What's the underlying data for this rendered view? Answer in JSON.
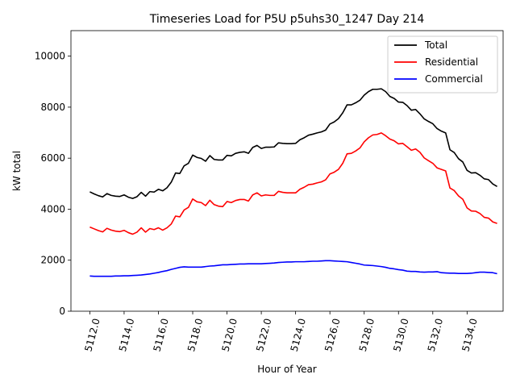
{
  "chart_data": {
    "type": "line",
    "title": "Timeseries Load for P5U p5uhs30_1247  Day 214",
    "xlabel": "Hour of Year",
    "ylabel": "kW total",
    "xlim": [
      5110.9,
      5136.1
    ],
    "ylim": [
      0,
      11000
    ],
    "xticks": [
      5112,
      5114,
      5116,
      5118,
      5120,
      5122,
      5124,
      5126,
      5128,
      5130,
      5132,
      5134
    ],
    "xtick_labels": [
      "5112.0",
      "5114.0",
      "5116.0",
      "5118.0",
      "5120.0",
      "5122.0",
      "5124.0",
      "5126.0",
      "5128.0",
      "5130.0",
      "5132.0",
      "5134.0"
    ],
    "yticks": [
      0,
      2000,
      4000,
      6000,
      8000,
      10000
    ],
    "ytick_labels": [
      "0",
      "2000",
      "4000",
      "6000",
      "8000",
      "10000"
    ],
    "grid": false,
    "legend_position": "top-right",
    "x": [
      5112.0,
      5112.25,
      5112.5,
      5112.75,
      5113.0,
      5113.25,
      5113.5,
      5113.75,
      5114.0,
      5114.25,
      5114.5,
      5114.75,
      5115.0,
      5115.25,
      5115.5,
      5115.75,
      5116.0,
      5116.25,
      5116.5,
      5116.75,
      5117.0,
      5117.25,
      5117.5,
      5117.75,
      5118.0,
      5118.25,
      5118.5,
      5118.75,
      5119.0,
      5119.25,
      5119.5,
      5119.75,
      5120.0,
      5120.25,
      5120.5,
      5120.75,
      5121.0,
      5121.25,
      5121.5,
      5121.75,
      5122.0,
      5122.25,
      5122.5,
      5122.75,
      5123.0,
      5123.25,
      5123.5,
      5123.75,
      5124.0,
      5124.25,
      5124.5,
      5124.75,
      5125.0,
      5125.25,
      5125.5,
      5125.75,
      5126.0,
      5126.25,
      5126.5,
      5126.75,
      5127.0,
      5127.25,
      5127.5,
      5127.75,
      5128.0,
      5128.25,
      5128.5,
      5128.75,
      5129.0,
      5129.25,
      5129.5,
      5129.75,
      5130.0,
      5130.25,
      5130.5,
      5130.75,
      5131.0,
      5131.25,
      5131.5,
      5131.75,
      5132.0,
      5132.25,
      5132.5,
      5132.75,
      5133.0,
      5133.25,
      5133.5,
      5133.75,
      5134.0,
      5134.25,
      5134.5,
      5134.75,
      5135.0,
      5135.25,
      5135.5,
      5135.75
    ],
    "series": [
      {
        "name": "Total",
        "color": "#000000",
        "values": [
          4680,
          4600,
          4530,
          4480,
          4610,
          4540,
          4510,
          4500,
          4560,
          4470,
          4420,
          4490,
          4660,
          4510,
          4690,
          4670,
          4780,
          4720,
          4840,
          5060,
          5420,
          5400,
          5700,
          5800,
          6120,
          6030,
          5990,
          5880,
          6100,
          5950,
          5930,
          5930,
          6110,
          6090,
          6190,
          6230,
          6250,
          6190,
          6420,
          6500,
          6380,
          6430,
          6430,
          6440,
          6600,
          6580,
          6570,
          6570,
          6580,
          6720,
          6800,
          6900,
          6940,
          6990,
          7030,
          7100,
          7340,
          7420,
          7550,
          7780,
          8090,
          8090,
          8170,
          8270,
          8470,
          8610,
          8700,
          8700,
          8720,
          8610,
          8420,
          8340,
          8200,
          8190,
          8060,
          7880,
          7910,
          7740,
          7540,
          7440,
          7350,
          7160,
          7060,
          6990,
          6330,
          6220,
          5980,
          5850,
          5520,
          5420,
          5430,
          5330,
          5190,
          5160,
          4990,
          4890
        ]
      },
      {
        "name": "Residential",
        "color": "#ff0000",
        "values": [
          3300,
          3230,
          3160,
          3110,
          3250,
          3180,
          3140,
          3120,
          3170,
          3080,
          3020,
          3100,
          3270,
          3100,
          3240,
          3200,
          3270,
          3180,
          3270,
          3420,
          3730,
          3700,
          3970,
          4070,
          4400,
          4290,
          4260,
          4140,
          4350,
          4180,
          4120,
          4100,
          4300,
          4260,
          4340,
          4380,
          4380,
          4320,
          4560,
          4640,
          4520,
          4560,
          4540,
          4540,
          4700,
          4660,
          4640,
          4640,
          4640,
          4780,
          4860,
          4960,
          4980,
          5030,
          5070,
          5150,
          5380,
          5450,
          5560,
          5800,
          6170,
          6190,
          6280,
          6400,
          6640,
          6800,
          6910,
          6930,
          6990,
          6880,
          6750,
          6680,
          6560,
          6580,
          6450,
          6310,
          6360,
          6230,
          6010,
          5900,
          5800,
          5620,
          5560,
          5500,
          4830,
          4730,
          4520,
          4390,
          4050,
          3930,
          3920,
          3830,
          3680,
          3650,
          3500,
          3440
        ]
      },
      {
        "name": "Commercial",
        "color": "#0000ff",
        "values": [
          1380,
          1370,
          1370,
          1370,
          1370,
          1370,
          1380,
          1380,
          1390,
          1390,
          1400,
          1410,
          1420,
          1440,
          1460,
          1490,
          1520,
          1560,
          1590,
          1640,
          1680,
          1720,
          1740,
          1730,
          1730,
          1730,
          1730,
          1750,
          1770,
          1780,
          1800,
          1820,
          1820,
          1830,
          1840,
          1850,
          1850,
          1860,
          1860,
          1860,
          1860,
          1870,
          1880,
          1890,
          1910,
          1920,
          1930,
          1930,
          1940,
          1940,
          1940,
          1950,
          1960,
          1960,
          1970,
          1980,
          1980,
          1970,
          1960,
          1950,
          1940,
          1910,
          1880,
          1850,
          1810,
          1800,
          1790,
          1770,
          1750,
          1720,
          1680,
          1660,
          1630,
          1610,
          1570,
          1560,
          1560,
          1540,
          1530,
          1540,
          1540,
          1550,
          1510,
          1500,
          1490,
          1490,
          1480,
          1480,
          1480,
          1490,
          1510,
          1530,
          1530,
          1520,
          1510,
          1470
        ]
      }
    ]
  }
}
